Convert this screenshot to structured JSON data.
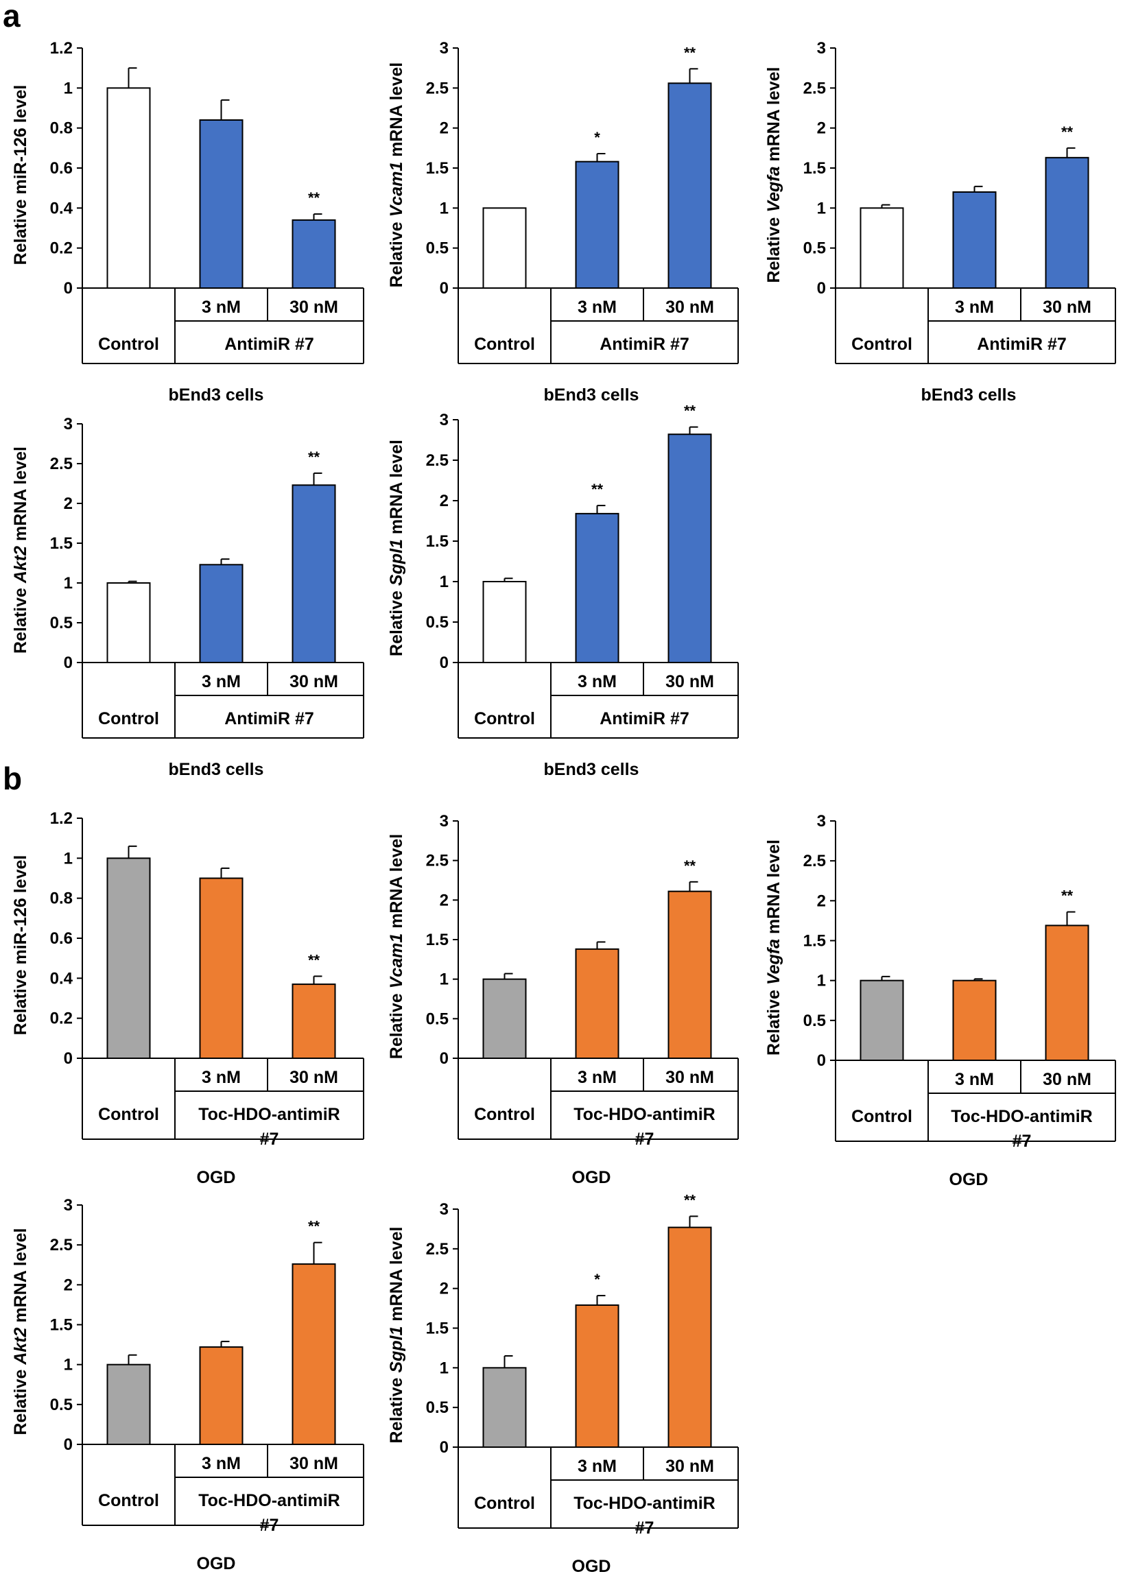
{
  "figure": {
    "panel_a_label": "a",
    "panel_b_label": "b"
  },
  "colors": {
    "control_a": "#ffffff",
    "treat_a": "#4472c4",
    "control_b": "#a6a6a6",
    "treat_b": "#ed7d31",
    "stroke": "#000000"
  },
  "chart_data": [
    {
      "id": "a1",
      "panel": "a",
      "type": "bar",
      "ylabel_parts": [
        {
          "t": "Relative miR-126 level",
          "i": false
        }
      ],
      "ylim": [
        0,
        1.2
      ],
      "yticks": [
        "0",
        "0.2",
        "0.4",
        "0.6",
        "0.8",
        "1",
        "1.2"
      ],
      "categories": [
        "Control",
        "3 nM",
        "30 nM"
      ],
      "values": [
        1.0,
        0.84,
        0.34
      ],
      "errors": [
        0.1,
        0.1,
        0.03
      ],
      "significance": [
        "",
        "",
        "**"
      ],
      "group_label": "AntimiR #7",
      "group_label_2": "",
      "cell_label": "bEnd3 cells"
    },
    {
      "id": "a2",
      "panel": "a",
      "type": "bar",
      "ylabel_parts": [
        {
          "t": "Relative ",
          "i": false
        },
        {
          "t": "Vcam1",
          "i": true
        },
        {
          "t": " mRNA level",
          "i": false
        }
      ],
      "ylim": [
        0,
        3
      ],
      "yticks": [
        "0",
        "0.5",
        "1",
        "1.5",
        "2",
        "2.5",
        "3"
      ],
      "categories": [
        "Control",
        "3 nM",
        "30 nM"
      ],
      "values": [
        1.0,
        1.58,
        2.56
      ],
      "errors": [
        0.0,
        0.1,
        0.18
      ],
      "significance": [
        "",
        "*",
        "**"
      ],
      "group_label": "AntimiR #7",
      "group_label_2": "",
      "cell_label": "bEnd3 cells"
    },
    {
      "id": "a3",
      "panel": "a",
      "type": "bar",
      "ylabel_parts": [
        {
          "t": "Relative ",
          "i": false
        },
        {
          "t": "Vegfa",
          "i": true
        },
        {
          "t": " mRNA level",
          "i": false
        }
      ],
      "ylim": [
        0,
        3
      ],
      "yticks": [
        "0",
        "0.5",
        "1",
        "1.5",
        "2",
        "2.5",
        "3"
      ],
      "categories": [
        "Control",
        "3 nM",
        "30 nM"
      ],
      "values": [
        1.0,
        1.2,
        1.63
      ],
      "errors": [
        0.04,
        0.07,
        0.12
      ],
      "significance": [
        "",
        "",
        "**"
      ],
      "group_label": "AntimiR #7",
      "group_label_2": "",
      "cell_label": "bEnd3 cells"
    },
    {
      "id": "a4",
      "panel": "a",
      "type": "bar",
      "ylabel_parts": [
        {
          "t": "Relative ",
          "i": false
        },
        {
          "t": "Akt2",
          "i": true
        },
        {
          "t": " mRNA level",
          "i": false
        }
      ],
      "ylim": [
        0,
        3
      ],
      "yticks": [
        "0",
        "0.5",
        "1",
        "1.5",
        "2",
        "2.5",
        "3"
      ],
      "categories": [
        "Control",
        "3 nM",
        "30 nM"
      ],
      "values": [
        1.0,
        1.23,
        2.23
      ],
      "errors": [
        0.02,
        0.07,
        0.15
      ],
      "significance": [
        "",
        "",
        "**"
      ],
      "group_label": "AntimiR #7",
      "group_label_2": "",
      "cell_label": "bEnd3 cells"
    },
    {
      "id": "a5",
      "panel": "a",
      "type": "bar",
      "ylabel_parts": [
        {
          "t": "Relative ",
          "i": false
        },
        {
          "t": "Sgpl1",
          "i": true
        },
        {
          "t": " mRNA level",
          "i": false
        }
      ],
      "ylim": [
        0,
        3
      ],
      "yticks": [
        "0",
        "0.5",
        "1",
        "1.5",
        "2",
        "2.5",
        "3"
      ],
      "categories": [
        "Control",
        "3 nM",
        "30 nM"
      ],
      "values": [
        1.0,
        1.84,
        2.82
      ],
      "errors": [
        0.04,
        0.1,
        0.09
      ],
      "significance": [
        "",
        "**",
        "**"
      ],
      "group_label": "AntimiR #7",
      "group_label_2": "",
      "cell_label": "bEnd3 cells"
    },
    {
      "id": "b1",
      "panel": "b",
      "type": "bar",
      "ylabel_parts": [
        {
          "t": "Relative miR-126 level",
          "i": false
        }
      ],
      "ylim": [
        0,
        1.2
      ],
      "yticks": [
        "0",
        "0.2",
        "0.4",
        "0.6",
        "0.8",
        "1",
        "1.2"
      ],
      "categories": [
        "Control",
        "3 nM",
        "30 nM"
      ],
      "values": [
        1.0,
        0.9,
        0.37
      ],
      "errors": [
        0.06,
        0.05,
        0.04
      ],
      "significance": [
        "",
        "",
        "**"
      ],
      "group_label": "Toc-HDO-antimiR",
      "group_label_2": "#7",
      "cell_label": "OGD"
    },
    {
      "id": "b2",
      "panel": "b",
      "type": "bar",
      "ylabel_parts": [
        {
          "t": "Relative ",
          "i": false
        },
        {
          "t": "Vcam1",
          "i": true
        },
        {
          "t": " mRNA level",
          "i": false
        }
      ],
      "ylim": [
        0,
        3
      ],
      "yticks": [
        "0",
        "0.5",
        "1",
        "1.5",
        "2",
        "2.5",
        "3"
      ],
      "categories": [
        "Control",
        "3 nM",
        "30 nM"
      ],
      "values": [
        1.0,
        1.38,
        2.11
      ],
      "errors": [
        0.07,
        0.09,
        0.12
      ],
      "significance": [
        "",
        "",
        "**"
      ],
      "group_label": "Toc-HDO-antimiR",
      "group_label_2": "#7",
      "cell_label": "OGD"
    },
    {
      "id": "b3",
      "panel": "b",
      "type": "bar",
      "ylabel_parts": [
        {
          "t": "Relative ",
          "i": false
        },
        {
          "t": "Vegfa",
          "i": true
        },
        {
          "t": " mRNA level",
          "i": false
        }
      ],
      "ylim": [
        0,
        3
      ],
      "yticks": [
        "0",
        "0.5",
        "1",
        "1.5",
        "2",
        "2.5",
        "3"
      ],
      "categories": [
        "Control",
        "3 nM",
        "30 nM"
      ],
      "values": [
        1.0,
        1.0,
        1.69
      ],
      "errors": [
        0.05,
        0.02,
        0.17
      ],
      "significance": [
        "",
        "",
        "**"
      ],
      "group_label": "Toc-HDO-antimiR",
      "group_label_2": "#7",
      "cell_label": "OGD"
    },
    {
      "id": "b4",
      "panel": "b",
      "type": "bar",
      "ylabel_parts": [
        {
          "t": "Relative ",
          "i": false
        },
        {
          "t": "Akt2",
          "i": true
        },
        {
          "t": " mRNA level",
          "i": false
        }
      ],
      "ylim": [
        0,
        3
      ],
      "yticks": [
        "0",
        "0.5",
        "1",
        "1.5",
        "2",
        "2.5",
        "3"
      ],
      "categories": [
        "Control",
        "3 nM",
        "30 nM"
      ],
      "values": [
        1.0,
        1.22,
        2.26
      ],
      "errors": [
        0.12,
        0.07,
        0.27
      ],
      "significance": [
        "",
        "",
        "**"
      ],
      "group_label": "Toc-HDO-antimiR",
      "group_label_2": "#7",
      "cell_label": "OGD"
    },
    {
      "id": "b5",
      "panel": "b",
      "type": "bar",
      "ylabel_parts": [
        {
          "t": "Relative ",
          "i": false
        },
        {
          "t": "Sgpl1",
          "i": true
        },
        {
          "t": " mRNA level",
          "i": false
        }
      ],
      "ylim": [
        0,
        3
      ],
      "yticks": [
        "0",
        "0.5",
        "1",
        "1.5",
        "2",
        "2.5",
        "3"
      ],
      "categories": [
        "Control",
        "3 nM",
        "30 nM"
      ],
      "values": [
        1.0,
        1.79,
        2.77
      ],
      "errors": [
        0.15,
        0.12,
        0.14
      ],
      "significance": [
        "",
        "*",
        "**"
      ],
      "group_label": "Toc-HDO-antimiR",
      "group_label_2": "#7",
      "cell_label": "OGD"
    }
  ]
}
